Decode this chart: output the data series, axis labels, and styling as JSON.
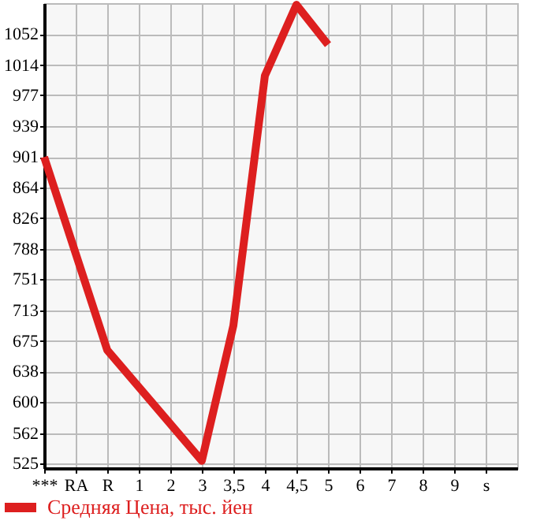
{
  "chart_data": {
    "type": "line",
    "categories": [
      "***",
      "RA",
      "R",
      "1",
      "2",
      "3",
      "3,5",
      "4",
      "4,5",
      "5",
      "6",
      "7",
      "8",
      "9",
      "s"
    ],
    "series": [
      {
        "name": "Средняя Цена, тыс. йен",
        "color": "#dd1f1f",
        "values": [
          901,
          null,
          664,
          null,
          null,
          528,
          694,
          1001,
          1088,
          1039,
          null,
          null,
          null,
          null,
          null
        ]
      }
    ],
    "ylim": [
      519,
      1090
    ],
    "yticks": [
      525,
      562,
      600,
      638,
      675,
      713,
      751,
      788,
      826,
      864,
      901,
      939,
      977,
      1014,
      1052
    ],
    "grid": true,
    "legend": "bottom",
    "marker": "none",
    "line_style": "solid"
  }
}
